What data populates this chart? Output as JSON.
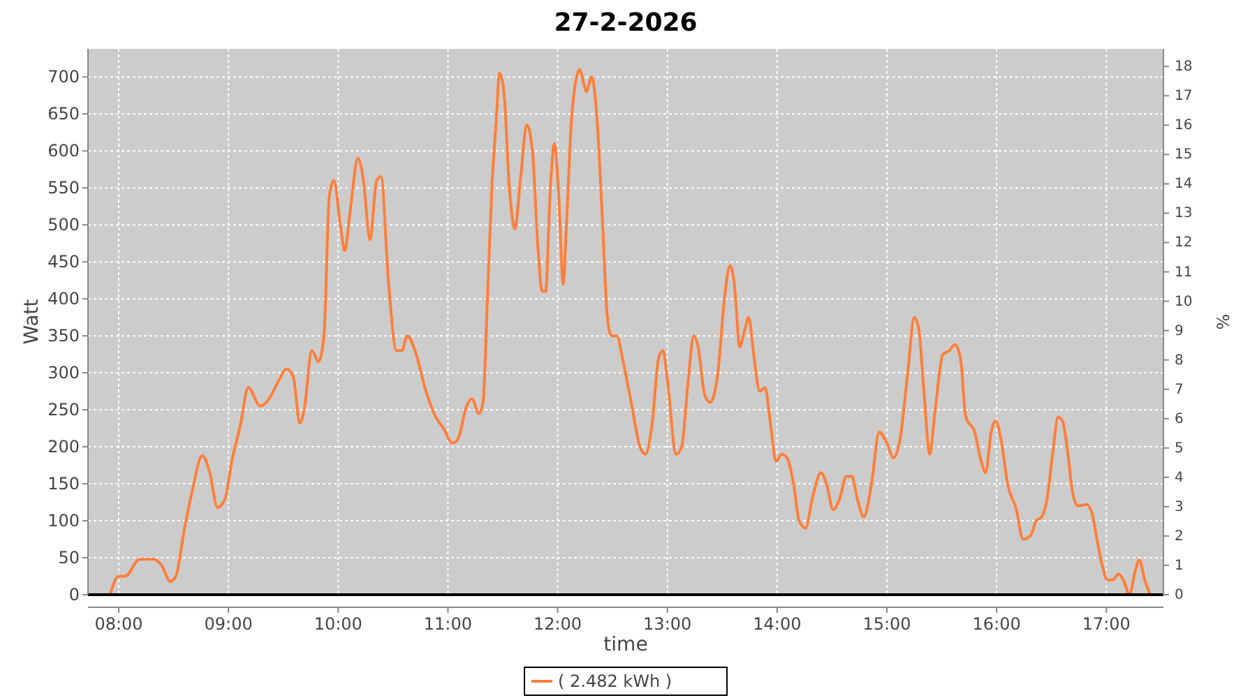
{
  "chart_data": {
    "type": "line",
    "title": "27-2-2026",
    "xlabel": "time",
    "ylabel": "Watt",
    "y2label": "%",
    "x": [
      7.92,
      8.0,
      8.06,
      8.19,
      8.32,
      8.39,
      8.47,
      8.52,
      8.6,
      8.67,
      8.76,
      8.83,
      8.9,
      8.97,
      9.03,
      9.11,
      9.18,
      9.29,
      9.37,
      9.46,
      9.53,
      9.59,
      9.65,
      9.69,
      9.76,
      9.82,
      9.87,
      9.92,
      9.96,
      10.02,
      10.06,
      10.11,
      10.18,
      10.23,
      10.29,
      10.35,
      10.39,
      10.46,
      10.53,
      10.58,
      10.63,
      10.7,
      10.8,
      10.89,
      10.96,
      11.04,
      11.09,
      11.17,
      11.22,
      11.28,
      11.32,
      11.36,
      11.4,
      11.44,
      11.47,
      11.51,
      11.56,
      11.61,
      11.66,
      11.72,
      11.77,
      11.82,
      11.86,
      11.89,
      11.93,
      11.97,
      12.01,
      12.05,
      12.08,
      12.13,
      12.2,
      12.24,
      12.26,
      12.31,
      12.36,
      12.41,
      12.45,
      12.49,
      12.54,
      12.59,
      12.67,
      12.75,
      12.8,
      12.86,
      12.92,
      12.96,
      13.0,
      13.08,
      13.13,
      13.19,
      13.24,
      13.28,
      13.34,
      13.39,
      13.46,
      13.52,
      13.57,
      13.61,
      13.66,
      13.7,
      13.74,
      13.79,
      13.84,
      13.89,
      13.94,
      13.99,
      14.04,
      14.09,
      14.15,
      14.2,
      14.26,
      14.32,
      14.4,
      14.45,
      14.51,
      14.57,
      14.63,
      14.68,
      14.73,
      14.79,
      14.86,
      14.93,
      15.0,
      15.06,
      15.12,
      15.19,
      15.25,
      15.29,
      15.34,
      15.39,
      15.44,
      15.51,
      15.57,
      15.62,
      15.67,
      15.72,
      15.8,
      15.86,
      15.9,
      15.95,
      15.99,
      16.04,
      16.1,
      16.18,
      16.24,
      16.31,
      16.36,
      16.41,
      16.46,
      16.51,
      16.56,
      16.6,
      16.65,
      16.69,
      16.74,
      16.82,
      16.87,
      16.92,
      16.97,
      17.01,
      17.06,
      17.11,
      17.16,
      17.21,
      17.26,
      17.3,
      17.35,
      17.4
    ],
    "series": [
      {
        "name": "( 2.482 kWh )",
        "color": "#ff7f3a",
        "values": [
          0,
          25,
          25,
          48,
          48,
          40,
          18,
          25,
          90,
          140,
          188,
          165,
          118,
          130,
          180,
          230,
          280,
          255,
          265,
          290,
          305,
          295,
          232,
          250,
          330,
          315,
          350,
          540,
          560,
          500,
          465,
          520,
          590,
          560,
          480,
          560,
          565,
          420,
          330,
          330,
          350,
          330,
          275,
          240,
          225,
          205,
          210,
          255,
          265,
          245,
          260,
          400,
          550,
          640,
          705,
          680,
          550,
          495,
          560,
          635,
          600,
          470,
          410,
          410,
          540,
          610,
          540,
          420,
          500,
          650,
          710,
          690,
          680,
          700,
          640,
          500,
          380,
          350,
          350,
          320,
          260,
          200,
          190,
          230,
          320,
          330,
          290,
          190,
          200,
          290,
          350,
          335,
          270,
          260,
          300,
          400,
          445,
          420,
          335,
          355,
          375,
          320,
          275,
          280,
          230,
          180,
          190,
          185,
          150,
          100,
          90,
          130,
          165,
          150,
          115,
          130,
          160,
          160,
          130,
          105,
          150,
          220,
          205,
          185,
          210,
          300,
          375,
          360,
          270,
          190,
          250,
          325,
          330,
          338,
          320,
          240,
          220,
          180,
          165,
          220,
          235,
          210,
          150,
          115,
          75,
          80,
          100,
          105,
          130,
          190,
          240,
          235,
          190,
          140,
          120,
          122,
          110,
          70,
          35,
          20,
          20,
          28,
          18,
          0,
          30,
          47,
          20,
          0
        ]
      }
    ],
    "xlim": [
      7.72,
      17.52
    ],
    "xticks": [
      {
        "value": 8,
        "label": "08:00"
      },
      {
        "value": 9,
        "label": "09:00"
      },
      {
        "value": 10,
        "label": "10:00"
      },
      {
        "value": 11,
        "label": "11:00"
      },
      {
        "value": 12,
        "label": "12:00"
      },
      {
        "value": 13,
        "label": "13:00"
      },
      {
        "value": 14,
        "label": "14:00"
      },
      {
        "value": 15,
        "label": "15:00"
      },
      {
        "value": 16,
        "label": "16:00"
      },
      {
        "value": 17,
        "label": "17:00"
      }
    ],
    "ylim": [
      0,
      738
    ],
    "yticks": [
      0,
      50,
      100,
      150,
      200,
      250,
      300,
      350,
      400,
      450,
      500,
      550,
      600,
      650,
      700
    ],
    "y2lim": [
      0,
      18.6
    ],
    "y2ticks": [
      0,
      1,
      2,
      3,
      4,
      5,
      6,
      7,
      8,
      9,
      10,
      11,
      12,
      13,
      14,
      15,
      16,
      17,
      18
    ],
    "grid": true,
    "legend": "bottom",
    "marker": "none",
    "line_style": "solid"
  }
}
